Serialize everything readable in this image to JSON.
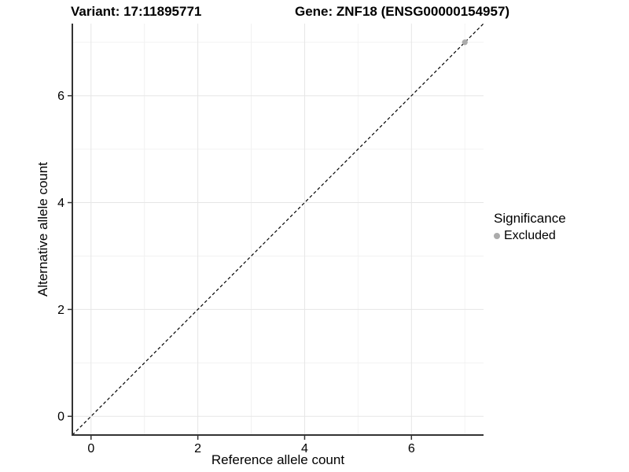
{
  "titles": {
    "variant": "Variant: 17:11895771",
    "gene": "Gene: ZNF18 (ENSG00000154957)"
  },
  "legend": {
    "title": "Significance",
    "items": [
      {
        "label": "Excluded",
        "color": "#ababab"
      }
    ]
  },
  "colors": {
    "background": "#ffffff",
    "grid_major": "#e6e6e6",
    "grid_minor": "#f2f2f2",
    "axis_line": "#333333",
    "tick_mark": "#333333",
    "text": "#000000",
    "abline": "#000000",
    "point_excluded": "#ababab"
  },
  "chart_data": {
    "type": "scatter",
    "title": "",
    "xlabel": "Reference allele count",
    "ylabel": "Alternative allele count",
    "xlim": [
      -0.35,
      7.35
    ],
    "ylim": [
      -0.35,
      7.35
    ],
    "x_ticks": [
      0,
      2,
      4,
      6
    ],
    "y_ticks": [
      0,
      2,
      4,
      6
    ],
    "x_minor_ticks": [
      1,
      3,
      5,
      7
    ],
    "y_minor_ticks": [
      1,
      3,
      5,
      7
    ],
    "grid": "on",
    "legend_position": "right",
    "reference_line": {
      "style": "dashed",
      "slope": 1,
      "intercept": 0
    },
    "series": [
      {
        "name": "Excluded",
        "color": "#ababab",
        "points": [
          {
            "x": 7,
            "y": 7
          }
        ]
      }
    ]
  }
}
